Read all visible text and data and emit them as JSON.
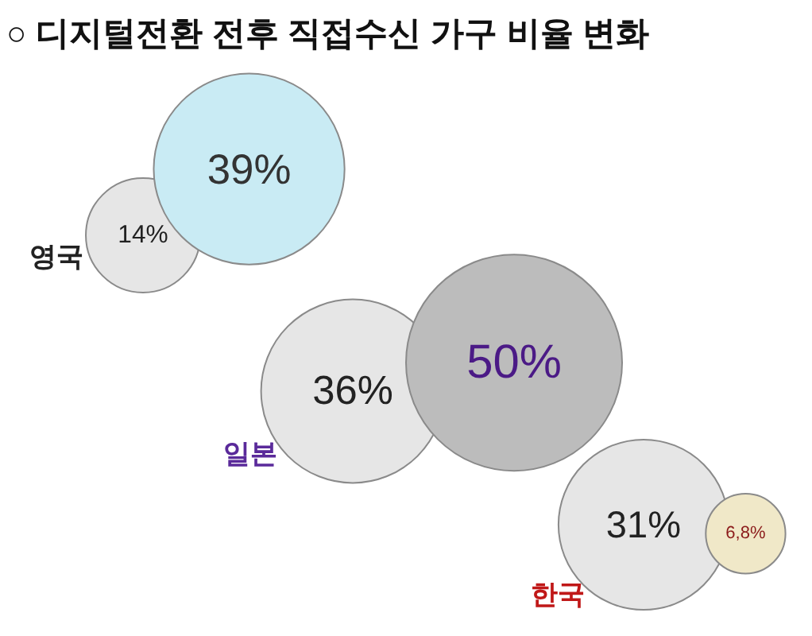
{
  "chart_data": {
    "type": "other",
    "title": "○ 디지털전환 전후 직접수신 가구 비율 변화",
    "categories": [
      "영국",
      "일본",
      "한국"
    ],
    "series": [
      {
        "colors": [
          "#e6e6e6",
          "#e6e6e6",
          "#e6e6e6"
        ],
        "values": [
          14,
          36,
          31
        ],
        "value_labels": [
          "14%",
          "36%",
          "31%"
        ]
      },
      {
        "colors": [
          "#c9ebf4",
          "#bcbcbc",
          "#f0e8c8"
        ],
        "values": [
          39,
          50,
          6.8
        ],
        "value_labels": [
          "39%",
          "50%",
          "6,8%"
        ]
      }
    ]
  }
}
